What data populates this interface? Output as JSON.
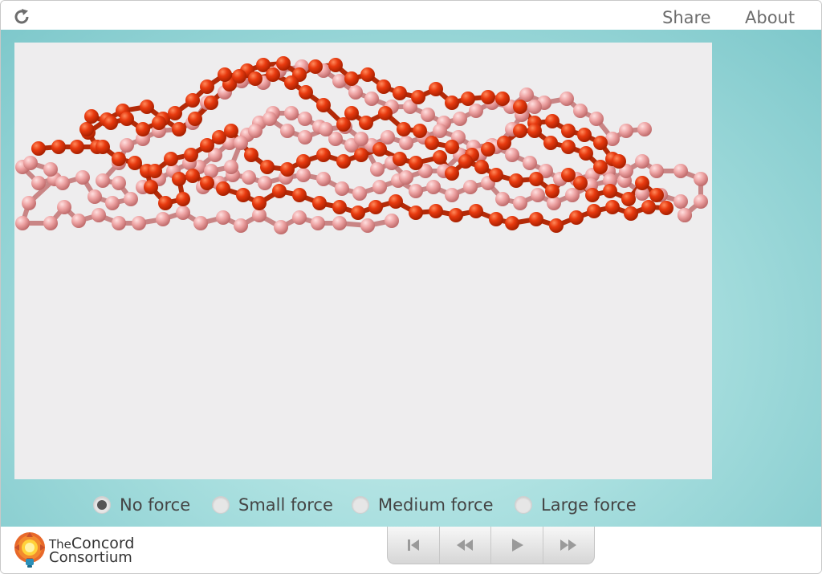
{
  "header": {
    "reload_icon": "reload-icon",
    "share_label": "Share",
    "about_label": "About"
  },
  "model": {
    "atom_colors": {
      "dark": "#e03a10",
      "light": "#e89a9a"
    }
  },
  "force_options": {
    "options": [
      "No force",
      "Small force",
      "Medium force",
      "Large force"
    ],
    "selected": "No force"
  },
  "footer": {
    "logo_line1_prefix": "The",
    "logo_line1_main": "Concord",
    "logo_line2": "Consortium",
    "playback_icons": [
      "reset-icon",
      "step-back-icon",
      "play-icon",
      "step-forward-icon"
    ]
  }
}
